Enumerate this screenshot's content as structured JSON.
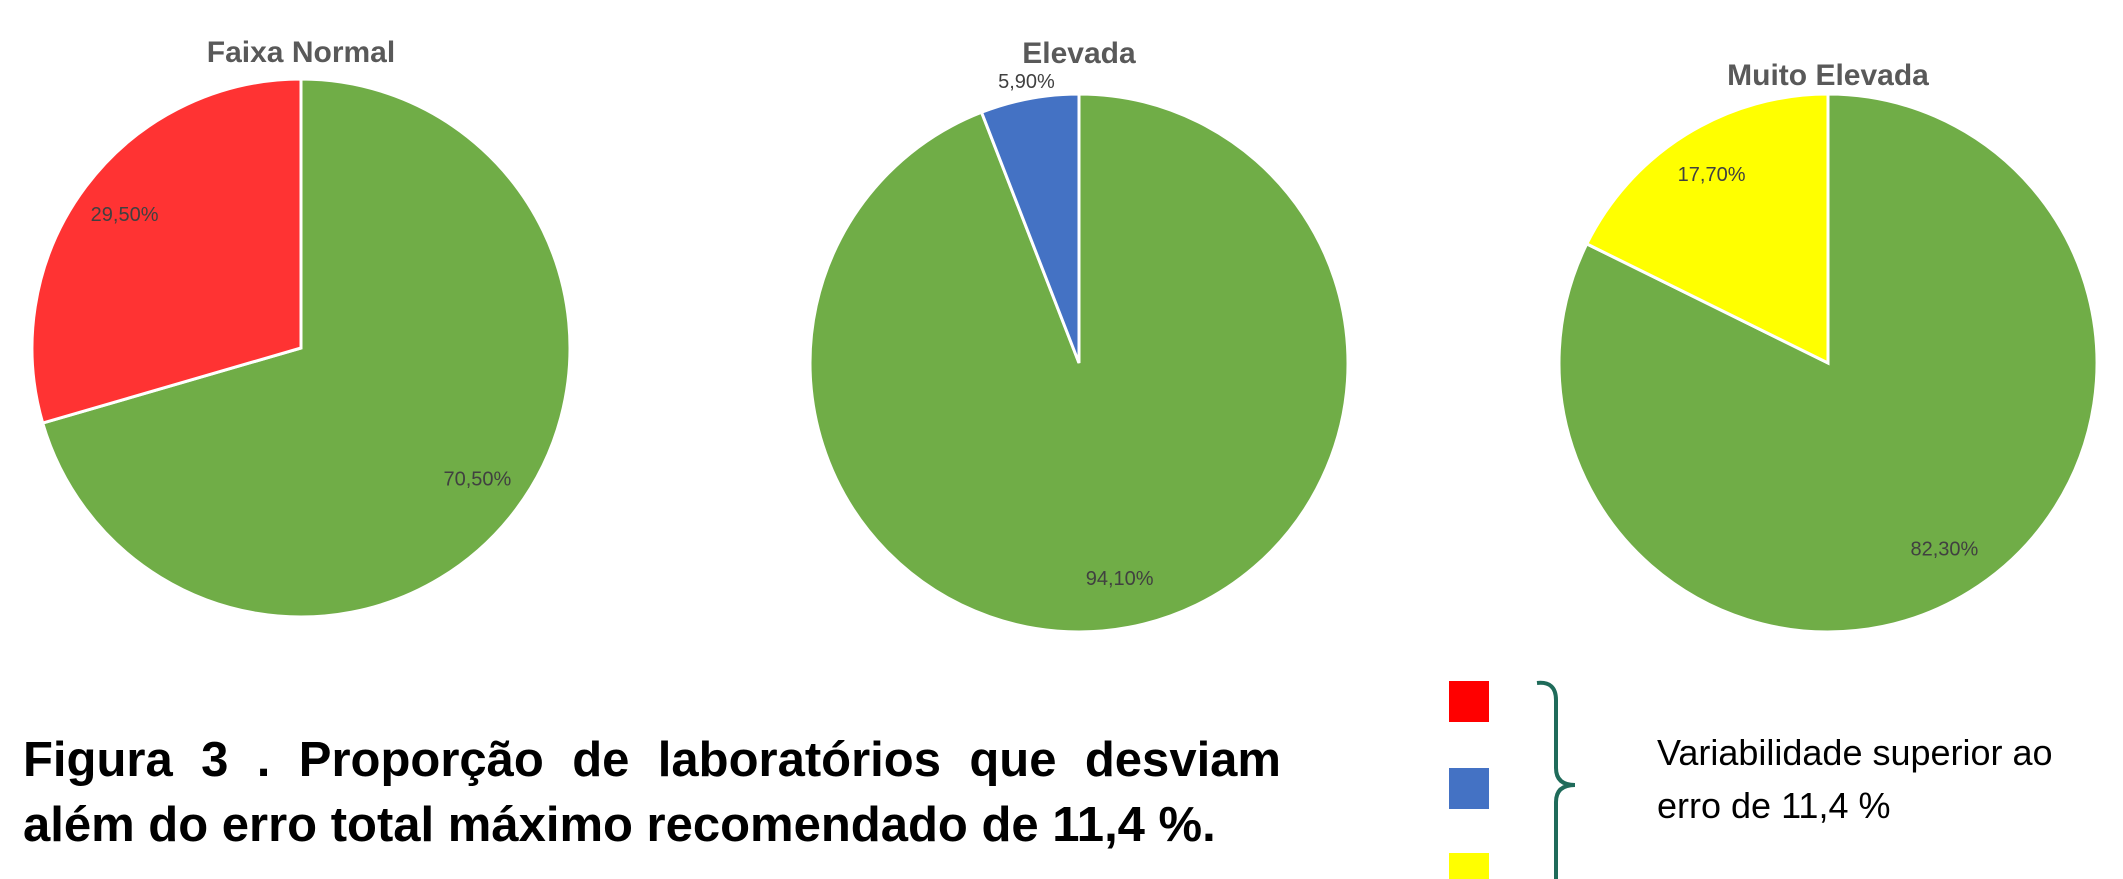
{
  "chart_data": [
    {
      "type": "pie",
      "title": "Faixa Normal",
      "values": [
        70.5,
        29.5
      ],
      "value_labels": [
        "70,50%",
        "29,50%"
      ],
      "colors": [
        "#70ad47",
        "#ff3333"
      ]
    },
    {
      "type": "pie",
      "title": "Elevada",
      "values": [
        94.1,
        5.9
      ],
      "value_labels": [
        "94,10%",
        "5,90%"
      ],
      "colors": [
        "#70ad47",
        "#4472c4"
      ]
    },
    {
      "type": "pie",
      "title": "Muito Elevada",
      "values": [
        82.3,
        17.7
      ],
      "value_labels": [
        "82,30%",
        "17,70%"
      ],
      "colors": [
        "#70ad47",
        "#ffff00"
      ]
    }
  ],
  "caption": "Figura 3 . Proporção de laboratórios que desviam além do erro total máximo recomendado de 11,4 %.",
  "legend": {
    "colors": [
      "#ff0000",
      "#4472c4",
      "#ffff00"
    ],
    "label": "Variabilidade superior ao erro de 11,4 %"
  }
}
